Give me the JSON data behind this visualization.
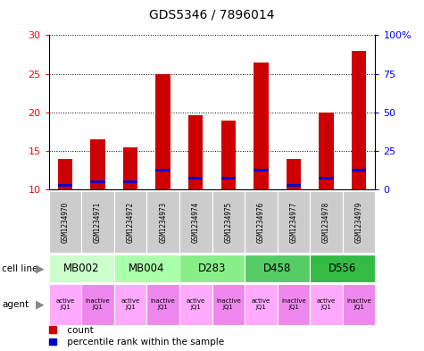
{
  "title": "GDS5346 / 7896014",
  "samples": [
    "GSM1234970",
    "GSM1234971",
    "GSM1234972",
    "GSM1234973",
    "GSM1234974",
    "GSM1234975",
    "GSM1234976",
    "GSM1234977",
    "GSM1234978",
    "GSM1234979"
  ],
  "counts": [
    14.0,
    16.5,
    15.5,
    25.0,
    19.6,
    18.9,
    26.5,
    14.0,
    20.0,
    28.0
  ],
  "percentile_ranks": [
    10.5,
    11.0,
    11.0,
    12.5,
    11.5,
    11.5,
    12.5,
    10.5,
    11.5,
    12.5
  ],
  "bar_bottom": 10.0,
  "ylim_left": [
    10,
    30
  ],
  "ylim_right": [
    0,
    100
  ],
  "yticks_left": [
    10,
    15,
    20,
    25,
    30
  ],
  "yticks_right": [
    0,
    25,
    50,
    75,
    100
  ],
  "ytick_labels_right": [
    "0",
    "25",
    "50",
    "75",
    "100%"
  ],
  "cell_lines": [
    {
      "label": "MB002",
      "cols": [
        0,
        1
      ],
      "color": "#ccffcc"
    },
    {
      "label": "MB004",
      "cols": [
        2,
        3
      ],
      "color": "#aaffaa"
    },
    {
      "label": "D283",
      "cols": [
        4,
        5
      ],
      "color": "#88ee88"
    },
    {
      "label": "D458",
      "cols": [
        6,
        7
      ],
      "color": "#44cc66"
    },
    {
      "label": "D556",
      "cols": [
        8,
        9
      ],
      "color": "#33bb44"
    }
  ],
  "agents": [
    "active\nJQ1",
    "inactive\nJQ1",
    "active\nJQ1",
    "inactive\nJQ1",
    "active\nJQ1",
    "inactive\nJQ1",
    "active\nJQ1",
    "inactive\nJQ1",
    "active\nJQ1",
    "inactive\nJQ1"
  ],
  "agent_active_color": "#ffaaff",
  "agent_inactive_color": "#ee88ee",
  "bar_color": "#cc0000",
  "percentile_color": "#0000cc",
  "bar_width": 0.45,
  "percentile_bar_height": 0.35,
  "bg_color": "#ffffff",
  "sample_box_color": "#cccccc",
  "grid_color": "#000000"
}
